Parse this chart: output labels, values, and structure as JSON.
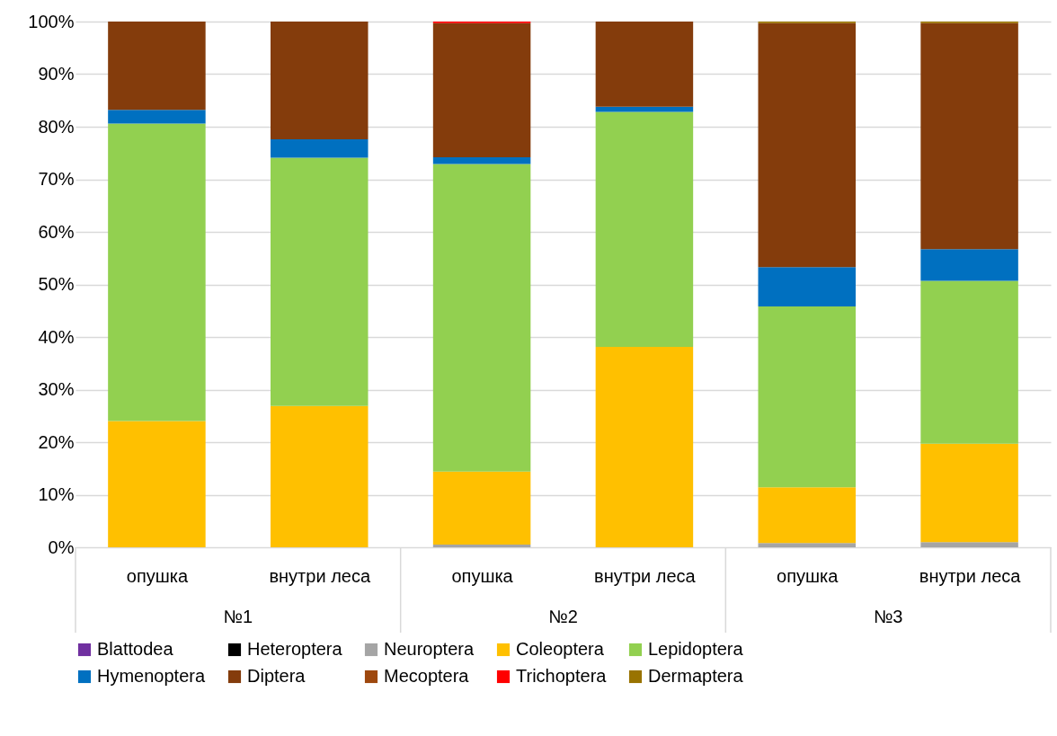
{
  "chart_data": {
    "type": "bar",
    "stacked": true,
    "categories": [
      "опушка",
      "внутри леса",
      "опушка",
      "внутри леса",
      "опушка",
      "внутри леса"
    ],
    "annotations": [
      "№1",
      "№2",
      "№3"
    ],
    "series": [
      {
        "name": "Blattodea",
        "color": "#7030a0",
        "values": [
          0,
          0,
          0,
          0,
          0,
          0
        ]
      },
      {
        "name": "Heteroptera",
        "color": "#000000",
        "values": [
          0,
          0,
          0,
          0,
          0,
          0
        ]
      },
      {
        "name": "Neuroptera",
        "color": "#a5a5a5",
        "values": [
          0,
          0,
          0.5,
          0,
          0.8,
          1.0
        ]
      },
      {
        "name": "Coleoptera",
        "color": "#ffc000",
        "values": [
          24.0,
          26.9,
          13.9,
          38.1,
          10.6,
          18.7
        ]
      },
      {
        "name": "Lepidoptera",
        "color": "#92d050",
        "values": [
          56.6,
          47.2,
          58.5,
          44.7,
          34.4,
          31.0
        ]
      },
      {
        "name": "Hymenoptera",
        "color": "#0070c0",
        "values": [
          2.6,
          3.5,
          1.3,
          1.0,
          7.5,
          6.0
        ]
      },
      {
        "name": "Diptera",
        "color": "#843c0c",
        "values": [
          16.8,
          22.4,
          25.5,
          16.2,
          46.4,
          43.0
        ]
      },
      {
        "name": "Mecoptera",
        "color": "#9e480e",
        "values": [
          0,
          0,
          0,
          0,
          0,
          0
        ]
      },
      {
        "name": "Trichoptera",
        "color": "#ff0000",
        "values": [
          0,
          0,
          0.3,
          0,
          0,
          0
        ]
      },
      {
        "name": "Dermaptera",
        "color": "#997300",
        "values": [
          0,
          0,
          0,
          0,
          0.3,
          0.3
        ]
      }
    ],
    "ylim": [
      0,
      100
    ],
    "yticks": [
      {
        "value": 0,
        "label": "0%"
      },
      {
        "value": 10,
        "label": "10%"
      },
      {
        "value": 20,
        "label": "20%"
      },
      {
        "value": 30,
        "label": "30%"
      },
      {
        "value": 40,
        "label": "40%"
      },
      {
        "value": 50,
        "label": "50%"
      },
      {
        "value": 60,
        "label": "60%"
      },
      {
        "value": 70,
        "label": "70%"
      },
      {
        "value": 80,
        "label": "80%"
      },
      {
        "value": 90,
        "label": "90%"
      },
      {
        "value": 100,
        "label": "100%"
      }
    ],
    "grid": "y",
    "legend": "bottom"
  }
}
